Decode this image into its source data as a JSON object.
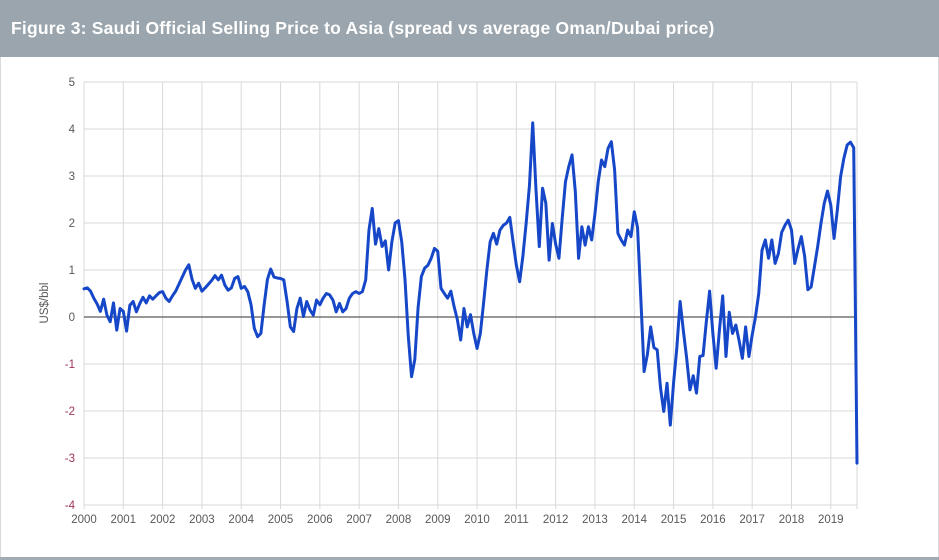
{
  "figure": {
    "title": "Figure 3: Saudi Official Selling Price to Asia (spread vs average Oman/Dubai price)"
  },
  "colors": {
    "banner_bg": "#9aa5ad",
    "banner_text": "#ffffff",
    "line": "#1547c8",
    "grid": "#d9d9d9",
    "zero_line": "#595959",
    "tick_positive": "#595959",
    "tick_negative": "#a03460",
    "axis_text": "#595959",
    "frame_border": "#d8dadc"
  },
  "chart_data": {
    "type": "line",
    "title": "Figure 3: Saudi Official Selling Price to Asia (spread vs average Oman/Dubai price)",
    "xlabel": "",
    "ylabel": "US$/bbl",
    "ylim": [
      -4,
      5
    ],
    "y_ticks": [
      5,
      4,
      3,
      2,
      1,
      0,
      -1,
      -2,
      -3,
      -4
    ],
    "x_tick_labels": [
      "2000",
      "2001",
      "2002",
      "2003",
      "2004",
      "2005",
      "2006",
      "2007",
      "2008",
      "2009",
      "2010",
      "2011",
      "2012",
      "2013",
      "2014",
      "2015",
      "2016",
      "2017",
      "2018",
      "2019"
    ],
    "frequency": "monthly",
    "range": "Jan 2000 - Sep 2019",
    "grid": true,
    "legend": "none",
    "series_name": "Saudi OSP to Asia spread vs average Oman/Dubai price",
    "values_by_year": {
      "2000": [
        0.6,
        0.62,
        0.55,
        0.4,
        0.28,
        0.12,
        0.38,
        0.04,
        -0.1,
        0.3,
        -0.28,
        0.18
      ],
      "2001": [
        0.12,
        -0.3,
        0.25,
        0.33,
        0.11,
        0.28,
        0.42,
        0.3,
        0.45,
        0.38,
        0.45,
        0.52
      ],
      "2002": [
        0.54,
        0.4,
        0.33,
        0.45,
        0.55,
        0.7,
        0.85,
        1.0,
        1.11,
        0.8,
        0.61,
        0.72
      ],
      "2003": [
        0.55,
        0.62,
        0.7,
        0.78,
        0.88,
        0.79,
        0.89,
        0.68,
        0.57,
        0.62,
        0.82,
        0.86
      ],
      "2004": [
        0.61,
        0.65,
        0.54,
        0.26,
        -0.24,
        -0.42,
        -0.35,
        0.26,
        0.8,
        1.02,
        0.85,
        0.83
      ],
      "2005": [
        0.82,
        0.79,
        0.33,
        -0.21,
        -0.31,
        0.18,
        0.4,
        0.01,
        0.33,
        0.15,
        0.04,
        0.36
      ],
      "2006": [
        0.26,
        0.4,
        0.5,
        0.47,
        0.36,
        0.11,
        0.29,
        0.11,
        0.18,
        0.4,
        0.5,
        0.54
      ],
      "2007": [
        0.5,
        0.54,
        0.79,
        1.85,
        2.31,
        1.55,
        1.88,
        1.5,
        1.62,
        1.0,
        1.6,
        2.0
      ],
      "2008": [
        2.05,
        1.6,
        0.8,
        -0.4,
        -1.27,
        -0.9,
        0.2,
        0.86,
        1.04,
        1.1,
        1.25,
        1.46
      ],
      "2009": [
        1.4,
        0.61,
        0.5,
        0.4,
        0.55,
        0.22,
        -0.06,
        -0.49,
        0.18,
        -0.21,
        0.05,
        -0.35
      ],
      "2010": [
        -0.67,
        -0.35,
        0.3,
        1.0,
        1.6,
        1.78,
        1.55,
        1.85,
        1.95,
        2.0,
        2.12,
        1.6
      ],
      "2011": [
        1.1,
        0.75,
        1.3,
        2.0,
        2.8,
        4.13,
        2.7,
        1.5,
        2.74,
        2.42,
        1.21,
        1.99
      ],
      "2012": [
        1.55,
        1.25,
        2.1,
        2.88,
        3.2,
        3.45,
        2.67,
        1.25,
        1.92,
        1.53,
        1.92,
        1.64
      ],
      "2013": [
        2.2,
        2.88,
        3.34,
        3.2,
        3.59,
        3.73,
        3.13,
        1.78,
        1.64,
        1.53,
        1.85,
        1.71
      ],
      "2014": [
        2.24,
        1.9,
        0.4,
        -1.16,
        -0.8,
        -0.21,
        -0.65,
        -0.7,
        -1.5,
        -2.01,
        -1.41,
        -2.3
      ],
      "2015": [
        -1.4,
        -0.65,
        0.33,
        -0.3,
        -0.88,
        -1.55,
        -1.25,
        -1.62,
        -0.84,
        -0.82,
        -0.1,
        0.55
      ],
      "2016": [
        -0.35,
        -1.09,
        -0.28,
        0.45,
        -0.84,
        0.1,
        -0.35,
        -0.17,
        -0.5,
        -0.88,
        -0.21,
        -0.84
      ],
      "2017": [
        -0.38,
        0.0,
        0.5,
        1.42,
        1.64,
        1.25,
        1.64,
        1.14,
        1.35,
        1.8,
        1.95,
        2.06
      ],
      "2018": [
        1.85,
        1.14,
        1.45,
        1.71,
        1.3,
        0.58,
        0.64,
        1.07,
        1.5,
        1.99,
        2.42,
        2.68
      ],
      "2019": [
        2.38,
        1.67,
        2.28,
        2.99,
        3.38,
        3.66,
        3.72,
        3.6,
        -3.11
      ]
    }
  }
}
